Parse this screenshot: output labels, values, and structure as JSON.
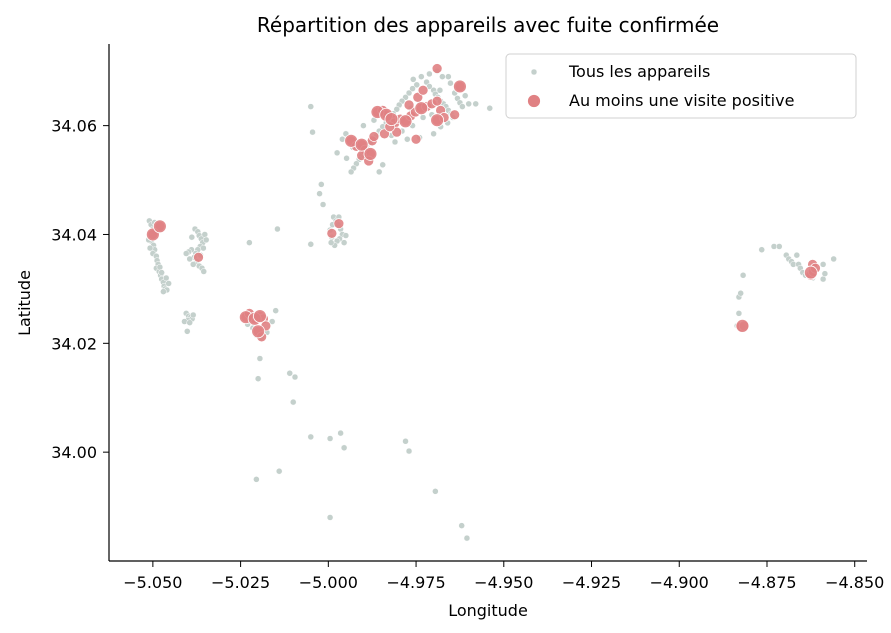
{
  "chart_data": {
    "type": "scatter",
    "title": "Répartition des appareils avec fuite confirmée",
    "xlabel": "Longitude",
    "ylabel": "Latitude",
    "xlim": [
      -5.0625,
      -4.8465
    ],
    "ylim": [
      33.98,
      34.075
    ],
    "xticks": [
      -5.05,
      -5.025,
      -5.0,
      -4.975,
      -4.95,
      -4.925,
      -4.9,
      -4.875,
      -4.85
    ],
    "xtick_labels": [
      "−5.050",
      "−5.025",
      "−5.000",
      "−4.975",
      "−4.950",
      "−4.925",
      "−4.900",
      "−4.875",
      "−4.850"
    ],
    "yticks": [
      34.0,
      34.02,
      34.04,
      34.06
    ],
    "ytick_labels": [
      "34.00",
      "34.02",
      "34.04",
      "34.06"
    ],
    "grid": false,
    "legend_position": "top-right",
    "series": [
      {
        "name": "Tous les appareils",
        "color": "#c4d0cc",
        "points": [
          [
            -5.051,
            34.0425
          ],
          [
            -5.0505,
            34.0418
          ],
          [
            -5.05,
            34.041
          ],
          [
            -5.0497,
            34.0402
          ],
          [
            -5.0502,
            34.0395
          ],
          [
            -5.0505,
            34.0388
          ],
          [
            -5.0498,
            34.038
          ],
          [
            -5.0495,
            34.0372
          ],
          [
            -5.05,
            34.0365
          ],
          [
            -5.049,
            34.036
          ],
          [
            -5.0488,
            34.0352
          ],
          [
            -5.0485,
            34.0345
          ],
          [
            -5.049,
            34.0338
          ],
          [
            -5.0482,
            34.0332
          ],
          [
            -5.0478,
            34.0325
          ],
          [
            -5.0475,
            34.0318
          ],
          [
            -5.047,
            34.0312
          ],
          [
            -5.0468,
            34.0305
          ],
          [
            -5.0465,
            34.03
          ],
          [
            -5.046,
            34.0298
          ],
          [
            -5.0495,
            34.0422
          ],
          [
            -5.0485,
            34.0415
          ],
          [
            -5.0478,
            34.0408
          ],
          [
            -5.0512,
            34.039
          ],
          [
            -5.0508,
            34.0375
          ],
          [
            -5.048,
            34.034
          ],
          [
            -5.0475,
            34.033
          ],
          [
            -5.0462,
            34.032
          ],
          [
            -5.0455,
            34.031
          ],
          [
            -5.047,
            34.0295
          ],
          [
            -5.038,
            34.041
          ],
          [
            -5.0372,
            34.0405
          ],
          [
            -5.0368,
            34.0398
          ],
          [
            -5.0362,
            34.0392
          ],
          [
            -5.0358,
            34.0385
          ],
          [
            -5.0365,
            34.0378
          ],
          [
            -5.0372,
            34.0372
          ],
          [
            -5.0378,
            34.0365
          ],
          [
            -5.0382,
            34.0358
          ],
          [
            -5.0375,
            34.035
          ],
          [
            -5.0368,
            34.0342
          ],
          [
            -5.036,
            34.0338
          ],
          [
            -5.0355,
            34.0332
          ],
          [
            -5.039,
            34.0372
          ],
          [
            -5.0398,
            34.0368
          ],
          [
            -5.0405,
            34.0365
          ],
          [
            -5.0395,
            34.0355
          ],
          [
            -5.0385,
            34.0345
          ],
          [
            -5.0352,
            34.04
          ],
          [
            -5.0348,
            34.039
          ],
          [
            -5.0356,
            34.0375
          ],
          [
            -5.0364,
            34.0362
          ],
          [
            -5.0389,
            34.0395
          ],
          [
            -5.0405,
            34.0255
          ],
          [
            -5.0398,
            34.025
          ],
          [
            -5.0392,
            34.0248
          ],
          [
            -5.0388,
            34.0245
          ],
          [
            -5.04,
            34.0242
          ],
          [
            -5.041,
            34.024
          ],
          [
            -5.0395,
            34.0238
          ],
          [
            -5.0385,
            34.0252
          ],
          [
            -5.0402,
            34.0222
          ],
          [
            -5.0225,
            34.0385
          ],
          [
            -5.0145,
            34.041
          ],
          [
            -5.0195,
            34.0172
          ],
          [
            -5.0225,
            34.0245
          ],
          [
            -5.023,
            34.0235
          ],
          [
            -5.0215,
            34.0228
          ],
          [
            -5.0205,
            34.0215
          ],
          [
            -5.019,
            34.021
          ],
          [
            -5.0175,
            34.022
          ],
          [
            -5.016,
            34.024
          ],
          [
            -5.015,
            34.026
          ],
          [
            -5.02,
            34.0135
          ],
          [
            -5.011,
            34.0145
          ],
          [
            -5.0095,
            34.0138
          ],
          [
            -5.01,
            34.0092
          ],
          [
            -5.014,
            33.9965
          ],
          [
            -5.0205,
            33.995
          ],
          [
            -5.005,
            34.0028
          ],
          [
            -4.9995,
            34.0025
          ],
          [
            -4.9965,
            34.0035
          ],
          [
            -4.9955,
            34.0008
          ],
          [
            -4.9995,
            33.988
          ],
          [
            -4.978,
            34.002
          ],
          [
            -4.977,
            34.0002
          ],
          [
            -4.9695,
            33.9928
          ],
          [
            -4.962,
            33.9865
          ],
          [
            -4.9605,
            33.9842
          ],
          [
            -5.005,
            34.0635
          ],
          [
            -5.0045,
            34.0588
          ],
          [
            -5.002,
            34.0492
          ],
          [
            -5.0025,
            34.0475
          ],
          [
            -5.005,
            34.0382
          ],
          [
            -5.0015,
            34.0455
          ],
          [
            -4.9985,
            34.0432
          ],
          [
            -4.9978,
            34.0425
          ],
          [
            -4.9972,
            34.0418
          ],
          [
            -4.9965,
            34.041
          ],
          [
            -4.996,
            34.04
          ],
          [
            -4.9968,
            34.0392
          ],
          [
            -4.9975,
            34.0388
          ],
          [
            -4.9982,
            34.038
          ],
          [
            -4.999,
            34.0395
          ],
          [
            -4.9995,
            34.0408
          ],
          [
            -4.9955,
            34.0385
          ],
          [
            -4.995,
            34.0398
          ],
          [
            -4.9988,
            34.0418
          ],
          [
            -4.997,
            34.0432
          ],
          [
            -4.9992,
            34.0385
          ],
          [
            -4.972,
            34.068
          ],
          [
            -4.9712,
            34.0672
          ],
          [
            -4.97,
            34.0665
          ],
          [
            -4.9695,
            34.0658
          ],
          [
            -4.9688,
            34.0652
          ],
          [
            -4.968,
            34.0645
          ],
          [
            -4.9672,
            34.064
          ],
          [
            -4.9665,
            34.0635
          ],
          [
            -4.9658,
            34.0628
          ],
          [
            -4.965,
            34.0622
          ],
          [
            -4.9645,
            34.0615
          ],
          [
            -4.964,
            34.066
          ],
          [
            -4.9632,
            34.065
          ],
          [
            -4.9625,
            34.0642
          ],
          [
            -4.9618,
            34.0635
          ],
          [
            -4.9735,
            34.069
          ],
          [
            -4.9748,
            34.0675
          ],
          [
            -4.976,
            34.0668
          ],
          [
            -4.977,
            34.066
          ],
          [
            -4.978,
            34.0652
          ],
          [
            -4.979,
            34.0645
          ],
          [
            -4.9798,
            34.0638
          ],
          [
            -4.9805,
            34.063
          ],
          [
            -4.9815,
            34.0622
          ],
          [
            -4.9825,
            34.0615
          ],
          [
            -4.9835,
            34.0605
          ],
          [
            -4.9845,
            34.0598
          ],
          [
            -4.9855,
            34.059
          ],
          [
            -4.9862,
            34.0582
          ],
          [
            -4.987,
            34.0575
          ],
          [
            -4.988,
            34.0568
          ],
          [
            -4.989,
            34.056
          ],
          [
            -4.9898,
            34.0552
          ],
          [
            -4.9905,
            34.0545
          ],
          [
            -4.9912,
            34.0538
          ],
          [
            -4.992,
            34.053
          ],
          [
            -4.9928,
            34.0522
          ],
          [
            -4.9935,
            34.0515
          ],
          [
            -4.9855,
            34.0515
          ],
          [
            -4.9845,
            34.0528
          ],
          [
            -4.982,
            34.0582
          ],
          [
            -4.979,
            34.059
          ],
          [
            -4.976,
            34.06
          ],
          [
            -4.973,
            34.0615
          ],
          [
            -4.9705,
            34.062
          ],
          [
            -4.968,
            34.0598
          ],
          [
            -4.97,
            34.0585
          ],
          [
            -4.974,
            34.0578
          ],
          [
            -4.9775,
            34.0575
          ],
          [
            -4.981,
            34.057
          ],
          [
            -4.966,
            34.0605
          ],
          [
            -4.9675,
            34.069
          ],
          [
            -4.9712,
            34.0695
          ],
          [
            -4.9758,
            34.0685
          ],
          [
            -4.9635,
            34.067
          ],
          [
            -4.9652,
            34.0678
          ],
          [
            -4.969,
            34.07
          ],
          [
            -4.96,
            34.064
          ],
          [
            -4.958,
            34.064
          ],
          [
            -4.954,
            34.0632
          ],
          [
            -4.961,
            34.0655
          ],
          [
            -4.987,
            34.061
          ],
          [
            -4.99,
            34.06
          ],
          [
            -4.995,
            34.0585
          ],
          [
            -4.993,
            34.056
          ],
          [
            -4.996,
            34.0575
          ],
          [
            -4.9948,
            34.054
          ],
          [
            -4.9975,
            34.055
          ],
          [
            -4.98,
            34.061
          ],
          [
            -4.974,
            34.064
          ],
          [
            -4.9765,
            34.0632
          ],
          [
            -4.9682,
            34.0665
          ],
          [
            -4.9658,
            34.069
          ],
          [
            -4.883,
            34.0285
          ],
          [
            -4.8825,
            34.0292
          ],
          [
            -4.8818,
            34.0325
          ],
          [
            -4.883,
            34.0255
          ],
          [
            -4.8835,
            34.0232
          ],
          [
            -4.882,
            34.0225
          ],
          [
            -4.8765,
            34.0372
          ],
          [
            -4.873,
            34.0378
          ],
          [
            -4.8715,
            34.0378
          ],
          [
            -4.8695,
            34.0362
          ],
          [
            -4.8688,
            34.0355
          ],
          [
            -4.868,
            34.035
          ],
          [
            -4.8675,
            34.0345
          ],
          [
            -4.8665,
            34.0362
          ],
          [
            -4.866,
            34.0345
          ],
          [
            -4.8655,
            34.0338
          ],
          [
            -4.8648,
            34.033
          ],
          [
            -4.864,
            34.0325
          ],
          [
            -4.862,
            34.032
          ],
          [
            -4.859,
            34.0318
          ],
          [
            -4.8585,
            34.0328
          ],
          [
            -4.859,
            34.0345
          ],
          [
            -4.856,
            34.0355
          ],
          [
            -4.8612,
            34.0338
          ]
        ]
      },
      {
        "name": "Au moins une visite positive",
        "color": "#e08183",
        "points": [
          [
            -5.05,
            34.04
          ],
          [
            -5.048,
            34.0415
          ],
          [
            -5.037,
            34.0358
          ],
          [
            -5.0235,
            34.0248
          ],
          [
            -5.0225,
            34.0255
          ],
          [
            -5.021,
            34.0245
          ],
          [
            -5.0195,
            34.025
          ],
          [
            -5.0185,
            34.0245
          ],
          [
            -5.0178,
            34.0232
          ],
          [
            -5.02,
            34.0222
          ],
          [
            -5.019,
            34.0212
          ],
          [
            -4.997,
            34.042
          ],
          [
            -4.999,
            34.0402
          ],
          [
            -4.9935,
            34.0572
          ],
          [
            -4.992,
            34.0562
          ],
          [
            -4.9905,
            34.0565
          ],
          [
            -4.9895,
            34.0555
          ],
          [
            -4.988,
            34.0548
          ],
          [
            -4.9905,
            34.0545
          ],
          [
            -4.9885,
            34.0535
          ],
          [
            -4.9875,
            34.0572
          ],
          [
            -4.987,
            34.058
          ],
          [
            -4.986,
            34.0625
          ],
          [
            -4.9845,
            34.0628
          ],
          [
            -4.9835,
            34.062
          ],
          [
            -4.982,
            34.0612
          ],
          [
            -4.981,
            34.0605
          ],
          [
            -4.9795,
            34.0612
          ],
          [
            -4.9805,
            34.0588
          ],
          [
            -4.978,
            34.0608
          ],
          [
            -4.9765,
            34.0618
          ],
          [
            -4.9752,
            34.0625
          ],
          [
            -4.9735,
            34.0632
          ],
          [
            -4.972,
            34.0635
          ],
          [
            -4.9705,
            34.064
          ],
          [
            -4.9745,
            34.0652
          ],
          [
            -4.973,
            34.0665
          ],
          [
            -4.977,
            34.0638
          ],
          [
            -4.975,
            34.0575
          ],
          [
            -4.969,
            34.0645
          ],
          [
            -4.968,
            34.0628
          ],
          [
            -4.969,
            34.061
          ],
          [
            -4.967,
            34.0615
          ],
          [
            -4.964,
            34.062
          ],
          [
            -4.9625,
            34.0672
          ],
          [
            -4.969,
            34.0705
          ],
          [
            -4.984,
            34.0585
          ],
          [
            -4.9825,
            34.0598
          ]
        ]
      }
    ],
    "positive_large_points": [
      [
        -5.05,
        34.04
      ],
      [
        -5.048,
        34.0415
      ],
      [
        -5.0235,
        34.0248
      ],
      [
        -5.021,
        34.0245
      ],
      [
        -5.0195,
        34.025
      ],
      [
        -5.02,
        34.0222
      ],
      [
        -4.9935,
        34.0572
      ],
      [
        -4.9905,
        34.0565
      ],
      [
        -4.988,
        34.0548
      ],
      [
        -4.986,
        34.0625
      ],
      [
        -4.9835,
        34.062
      ],
      [
        -4.982,
        34.0612
      ],
      [
        -4.978,
        34.0608
      ],
      [
        -4.9735,
        34.0632
      ],
      [
        -4.969,
        34.061
      ],
      [
        -4.9625,
        34.0672
      ],
      [
        -4.882,
        34.0232
      ],
      [
        -4.8625,
        34.033
      ]
    ],
    "positive_east_points": [
      [
        -4.8825,
        34.023
      ],
      [
        -4.8815,
        34.0232
      ],
      [
        -4.862,
        34.0345
      ],
      [
        -4.8625,
        34.0325
      ],
      [
        -4.8618,
        34.0332
      ],
      [
        -4.8612,
        34.0338
      ]
    ]
  }
}
